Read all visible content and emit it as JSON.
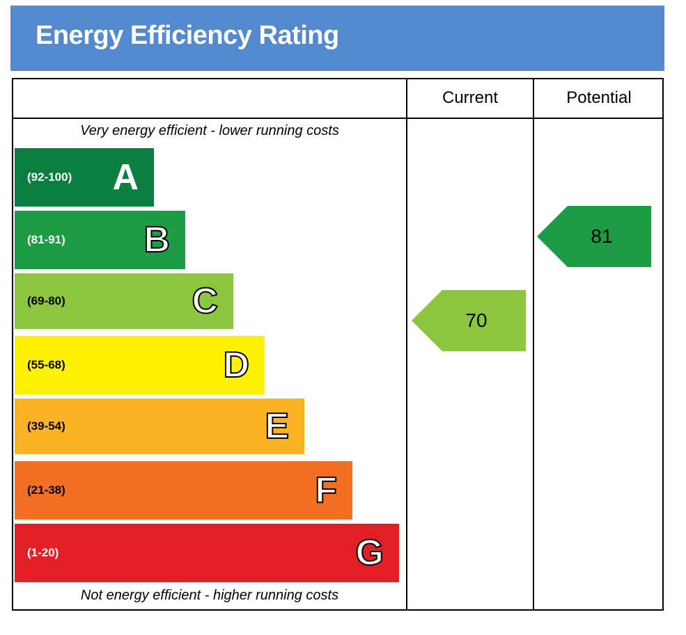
{
  "header": {
    "title": "Energy Efficiency Rating"
  },
  "columns": {
    "current": "Current",
    "potential": "Potential"
  },
  "notes": {
    "top": "Very energy efficient - lower running costs",
    "bottom": "Not energy efficient - higher running costs"
  },
  "chart_data": {
    "type": "bar",
    "bands": [
      {
        "letter": "A",
        "range": "(92-100)",
        "min": 92,
        "max": 100,
        "color": "#0b7f3f"
      },
      {
        "letter": "B",
        "range": "(81-91)",
        "min": 81,
        "max": 91,
        "color": "#1e9b45"
      },
      {
        "letter": "C",
        "range": "(69-80)",
        "min": 69,
        "max": 80,
        "color": "#8cc63f"
      },
      {
        "letter": "D",
        "range": "(55-68)",
        "min": 55,
        "max": 68,
        "color": "#fff200"
      },
      {
        "letter": "E",
        "range": "(39-54)",
        "min": 39,
        "max": 54,
        "color": "#fbb225"
      },
      {
        "letter": "F",
        "range": "(21-38)",
        "min": 21,
        "max": 38,
        "color": "#f36f23"
      },
      {
        "letter": "G",
        "range": "(1-20)",
        "min": 1,
        "max": 20,
        "color": "#e21f26"
      }
    ],
    "current": {
      "value": 70,
      "band": "C",
      "color": "#8cc63f"
    },
    "potential": {
      "value": 81,
      "band": "B",
      "color": "#1e9b45"
    }
  }
}
